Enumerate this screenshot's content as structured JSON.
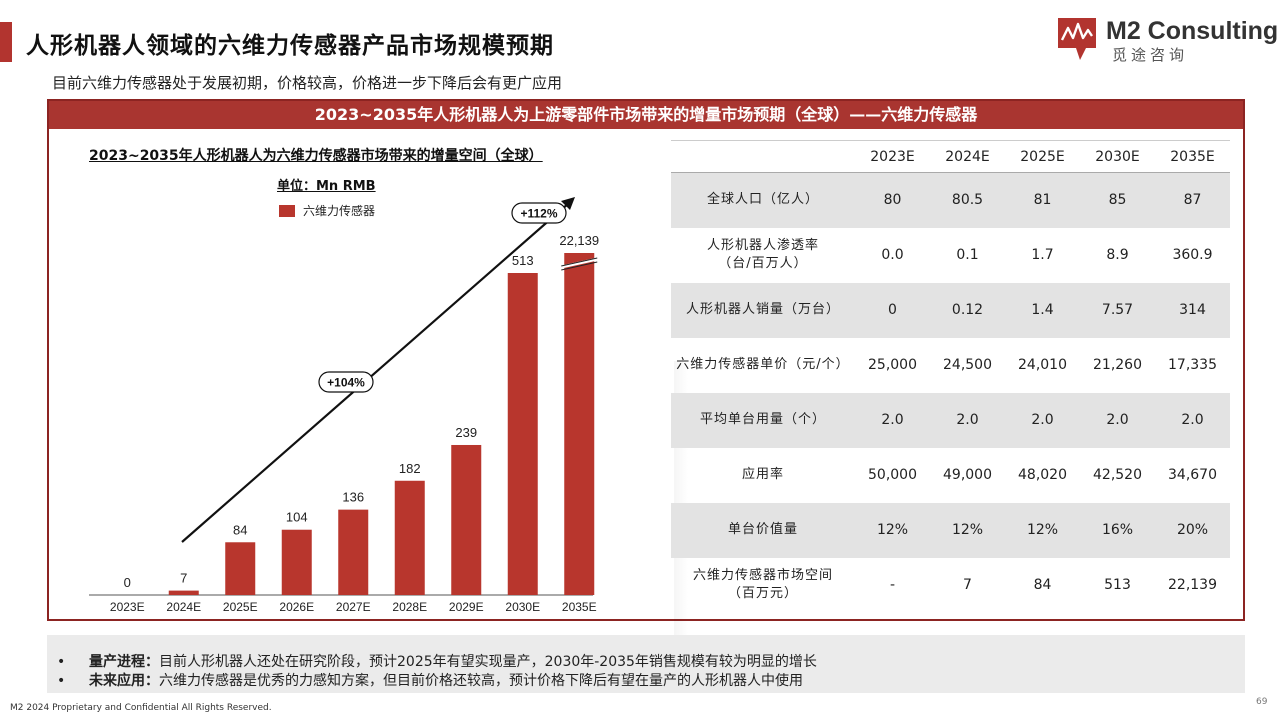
{
  "page": {
    "title": "人形机器人领域的六维力传感器产品市场规模预期",
    "subtitle": "目前六维力传感器处于发展初期，价格较高，价格进一步下降后会有更广应用"
  },
  "logo": {
    "name": "M2 Consulting",
    "cn": "觅途咨询"
  },
  "panel": {
    "header": "2023~2035年人形机器人为上游零部件市场带来的增量市场预期（全球）——六维力传感器"
  },
  "colors": {
    "accent": "#b2342f",
    "bar": "#b8362d",
    "table_shade": "#e3e3e3"
  },
  "chart_data": {
    "type": "bar",
    "title": "2023~2035年人形机器人为六维力传感器市场带来的增量空间（全球）",
    "unit": "单位：Mn RMB",
    "legend": [
      "六维力传感器"
    ],
    "categories": [
      "2023E",
      "2024E",
      "2025E",
      "2026E",
      "2027E",
      "2028E",
      "2029E",
      "2030E",
      "2035E"
    ],
    "series": [
      {
        "name": "六维力传感器",
        "values": [
          0,
          7,
          84,
          104,
          136,
          182,
          239,
          513,
          22139
        ]
      }
    ],
    "value_labels": [
      "0",
      "7",
      "84",
      "104",
      "136",
      "182",
      "239",
      "513",
      "22,139"
    ],
    "axis_break_on": "2035E",
    "annotations": [
      "+104%",
      "+112%"
    ]
  },
  "table": {
    "headers": [
      "2023E",
      "2024E",
      "2025E",
      "2030E",
      "2035E"
    ],
    "rows": [
      {
        "label": "全球人口（亿人）",
        "label2": "",
        "values": [
          "80",
          "80.5",
          "81",
          "85",
          "87"
        ]
      },
      {
        "label": "人形机器人渗透率",
        "label2": "（台/百万人）",
        "values": [
          "0.0",
          "0.1",
          "1.7",
          "8.9",
          "360.9"
        ]
      },
      {
        "label": "人形机器人销量（万台）",
        "label2": "",
        "values": [
          "0",
          "0.12",
          "1.4",
          "7.57",
          "314"
        ]
      },
      {
        "label": "六维力传感器单价（元/个）",
        "label2": "",
        "values": [
          "25,000",
          "24,500",
          "24,010",
          "21,260",
          "17,335"
        ]
      },
      {
        "label": "平均单台用量（个）",
        "label2": "",
        "values": [
          "2.0",
          "2.0",
          "2.0",
          "2.0",
          "2.0"
        ]
      },
      {
        "label": "应用率",
        "label2": "",
        "values": [
          "50,000",
          "49,000",
          "48,020",
          "42,520",
          "34,670"
        ]
      },
      {
        "label": "单台价值量",
        "label2": "",
        "values": [
          "12%",
          "12%",
          "12%",
          "16%",
          "20%"
        ]
      },
      {
        "label": "六维力传感器市场空间",
        "label2": "（百万元）",
        "values": [
          "-",
          "7",
          "84",
          "513",
          "22,139"
        ]
      }
    ]
  },
  "footer": {
    "bullet": "•",
    "items": [
      {
        "lead": "量产进程：",
        "text": "目前人形机器人还处在研究阶段，预计2025年有望实现量产，2030年-2035年销售规模有较为明显的增长"
      },
      {
        "lead": "未来应用：",
        "text": "六维力传感器是优秀的力感知方案，但目前价格还较高，预计价格下降后有望在量产的人形机器人中使用"
      }
    ],
    "copyright": "M2  2024 Proprietary and Confidential All Rights Reserved.",
    "page_number": "69"
  }
}
